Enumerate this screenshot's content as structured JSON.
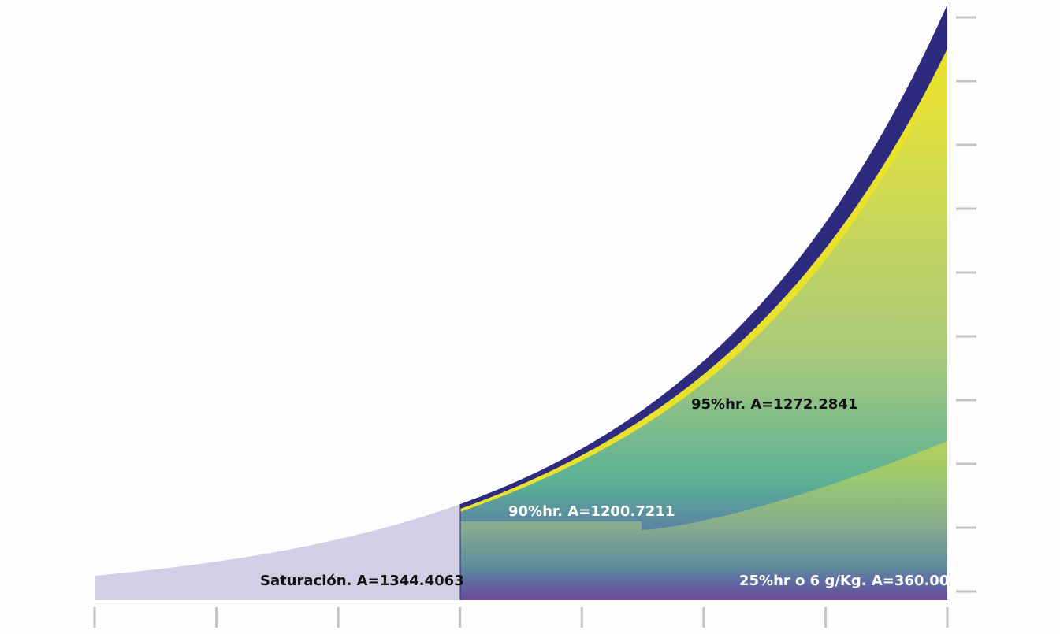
{
  "chart_data": {
    "type": "area",
    "title": "",
    "xlabel": "",
    "ylabel": "",
    "x_tick_count": 8,
    "y_tick_count": 10,
    "tick_labels_shown": false,
    "series": [
      {
        "key": "sat",
        "label": "Saturación. A=1344.4063",
        "fill": "#d1cfe5",
        "label_color": "#111111"
      },
      {
        "key": "rh95",
        "label": "95%hr. A=1272.2841",
        "fill": "#2e2a7e",
        "label_color": "#111111"
      },
      {
        "key": "rh90",
        "label": "90%hr. A=1200.7211",
        "fill": "#e8e22d",
        "label_color": "#ffffff"
      },
      {
        "key": "rh25",
        "label": "25%hr o 6 g/Kg. A=360.002",
        "fill": "#55b396",
        "label_color": "#ffffff"
      }
    ],
    "gradient_colors": [
      "#e3e13a",
      "#a8c97c",
      "#5bb195",
      "#5b7ca6",
      "#6a4a98"
    ],
    "legend": "none",
    "grid": false,
    "tick_color": "#c4c4c4"
  }
}
